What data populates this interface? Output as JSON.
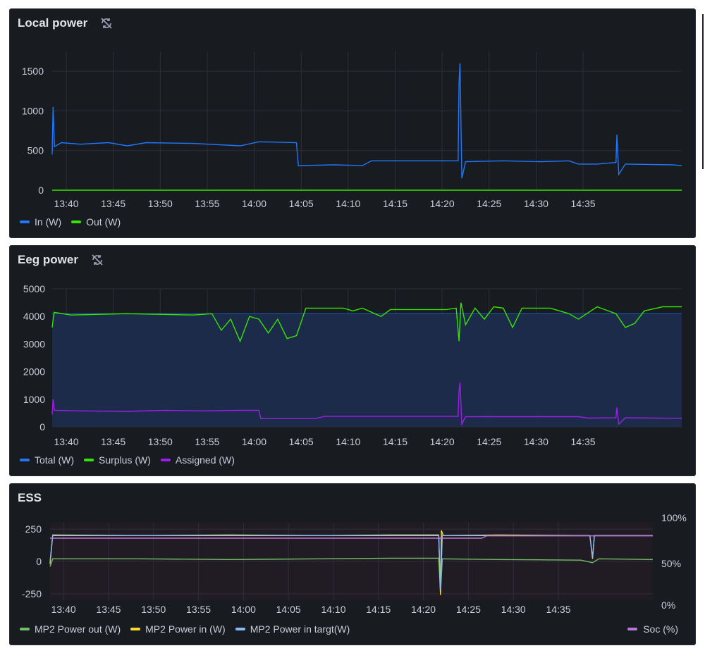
{
  "panels": {
    "local": {
      "title": "Local power",
      "legend": [
        {
          "label": "In (W)",
          "color": "#1f78ff"
        },
        {
          "label": "Out (W)",
          "color": "#37e300"
        }
      ]
    },
    "eeg": {
      "title": "Eeg power",
      "legend": [
        {
          "label": "Total (W)",
          "color": "#1f78ff"
        },
        {
          "label": "Surplus (W)",
          "color": "#37e300"
        },
        {
          "label": "Assigned (W)",
          "color": "#9d1ee8"
        }
      ]
    },
    "ess": {
      "title": "ESS",
      "legend": [
        {
          "label": "MP2 Power out (W)",
          "color": "#73bf69"
        },
        {
          "label": "MP2 Power in (W)",
          "color": "#fade2a"
        },
        {
          "label": "MP2 Power in targt(W)",
          "color": "#8ab8ff"
        }
      ],
      "legend_right": {
        "label": "Soc (%)",
        "color": "#b877d9"
      }
    }
  },
  "chart_data": [
    {
      "type": "line",
      "title": "Local power",
      "x_ticks": [
        "13:40",
        "13:45",
        "13:50",
        "13:55",
        "14:00",
        "14:05",
        "14:10",
        "14:15",
        "14:20",
        "14:25",
        "14:30",
        "14:35"
      ],
      "y_ticks": [
        "0",
        "500",
        "1000",
        "1500"
      ],
      "ylim": [
        0,
        1750
      ],
      "grid": true,
      "legend": "bottom-left",
      "series": [
        {
          "name": "In (W)",
          "color": "#1f78ff",
          "points": [
            [
              0,
              450
            ],
            [
              0.1,
              1050
            ],
            [
              0.25,
              550
            ],
            [
              1,
              600
            ],
            [
              3,
              580
            ],
            [
              6,
              600
            ],
            [
              8,
              560
            ],
            [
              10,
              600
            ],
            [
              15,
              590
            ],
            [
              20,
              560
            ],
            [
              22,
              610
            ],
            [
              26,
              600
            ],
            [
              26.2,
              310
            ],
            [
              30,
              320
            ],
            [
              33,
              310
            ],
            [
              34,
              370
            ],
            [
              38,
              370
            ],
            [
              42,
              370
            ],
            [
              43.2,
              370
            ],
            [
              43.3,
              1350
            ],
            [
              43.4,
              1600
            ],
            [
              43.6,
              150
            ],
            [
              44,
              360
            ],
            [
              48,
              370
            ],
            [
              52,
              360
            ],
            [
              55,
              370
            ],
            [
              56,
              330
            ],
            [
              58,
              330
            ],
            [
              60,
              350
            ],
            [
              60.1,
              700
            ],
            [
              60.3,
              200
            ],
            [
              61,
              330
            ],
            [
              66,
              320
            ],
            [
              67,
              310
            ]
          ]
        },
        {
          "name": "Out (W)",
          "color": "#37e300",
          "points": [
            [
              0,
              0
            ],
            [
              67,
              0
            ]
          ]
        }
      ]
    },
    {
      "type": "area",
      "title": "Eeg power",
      "x_ticks": [
        "13:40",
        "13:45",
        "13:50",
        "13:55",
        "14:00",
        "14:05",
        "14:10",
        "14:15",
        "14:20",
        "14:25",
        "14:30",
        "14:35"
      ],
      "y_ticks": [
        "0",
        "1000",
        "2000",
        "3000",
        "4000",
        "5000"
      ],
      "ylim": [
        0,
        5000
      ],
      "grid": true,
      "legend": "bottom-left",
      "series": [
        {
          "name": "Total (W)",
          "color": "#1f78ff",
          "points": [
            [
              0,
              4100
            ],
            [
              67,
              4100
            ]
          ]
        },
        {
          "name": "Surplus (W)",
          "color": "#37e300",
          "points": [
            [
              0,
              3600
            ],
            [
              0.2,
              4150
            ],
            [
              2,
              4050
            ],
            [
              8,
              4100
            ],
            [
              15,
              4050
            ],
            [
              17,
              4100
            ],
            [
              18,
              3500
            ],
            [
              19,
              3900
            ],
            [
              20,
              3100
            ],
            [
              21,
              4000
            ],
            [
              22,
              3900
            ],
            [
              23,
              3400
            ],
            [
              24,
              3900
            ],
            [
              25,
              3200
            ],
            [
              26,
              3300
            ],
            [
              27,
              4300
            ],
            [
              31,
              4300
            ],
            [
              32,
              4200
            ],
            [
              33,
              4300
            ],
            [
              35,
              4000
            ],
            [
              36,
              4250
            ],
            [
              42,
              4250
            ],
            [
              43,
              4300
            ],
            [
              43.3,
              3100
            ],
            [
              43.5,
              4500
            ],
            [
              44,
              3700
            ],
            [
              45,
              4300
            ],
            [
              46,
              3900
            ],
            [
              47,
              4350
            ],
            [
              48,
              4300
            ],
            [
              49,
              3600
            ],
            [
              50,
              4300
            ],
            [
              53,
              4300
            ],
            [
              55,
              4100
            ],
            [
              56,
              3900
            ],
            [
              58,
              4350
            ],
            [
              60,
              4100
            ],
            [
              61,
              3600
            ],
            [
              62,
              3750
            ],
            [
              63,
              4200
            ],
            [
              65,
              4350
            ],
            [
              67,
              4350
            ]
          ]
        },
        {
          "name": "Assigned (W)",
          "color": "#9d1ee8",
          "points": [
            [
              0,
              450
            ],
            [
              0.1,
              1000
            ],
            [
              0.25,
              600
            ],
            [
              3,
              580
            ],
            [
              8,
              560
            ],
            [
              12,
              600
            ],
            [
              16,
              580
            ],
            [
              20,
              600
            ],
            [
              22,
              600
            ],
            [
              22.2,
              300
            ],
            [
              28,
              300
            ],
            [
              29,
              380
            ],
            [
              40,
              380
            ],
            [
              43.2,
              380
            ],
            [
              43.3,
              1300
            ],
            [
              43.4,
              1600
            ],
            [
              43.6,
              100
            ],
            [
              44,
              370
            ],
            [
              52,
              370
            ],
            [
              56,
              370
            ],
            [
              57,
              320
            ],
            [
              60,
              330
            ],
            [
              60.1,
              700
            ],
            [
              60.3,
              100
            ],
            [
              61,
              330
            ],
            [
              67,
              310
            ]
          ]
        }
      ]
    },
    {
      "type": "line",
      "title": "ESS",
      "x_ticks": [
        "13:40",
        "13:45",
        "13:50",
        "13:55",
        "14:00",
        "14:05",
        "14:10",
        "14:15",
        "14:20",
        "14:25",
        "14:30",
        "14:35"
      ],
      "y_ticks": [
        "-250",
        "0",
        "250"
      ],
      "y2_ticks": [
        "0%",
        "50%",
        "100%"
      ],
      "ylim": [
        -300,
        300
      ],
      "grid": true,
      "legend": "bottom",
      "series": [
        {
          "name": "MP2 Power out (W)",
          "color": "#73bf69",
          "points": [
            [
              0,
              -40
            ],
            [
              0.3,
              20
            ],
            [
              10,
              20
            ],
            [
              20,
              15
            ],
            [
              30,
              20
            ],
            [
              38,
              25
            ],
            [
              43.2,
              25
            ],
            [
              43.4,
              -250
            ],
            [
              43.6,
              20
            ],
            [
              50,
              15
            ],
            [
              59,
              10
            ],
            [
              60.3,
              -10
            ],
            [
              61,
              20
            ],
            [
              67,
              15
            ]
          ]
        },
        {
          "name": "MP2 Power in (W)",
          "color": "#fade2a",
          "points": [
            [
              0,
              -20
            ],
            [
              0.3,
              205
            ],
            [
              10,
              200
            ],
            [
              20,
              205
            ],
            [
              30,
              200
            ],
            [
              38,
              205
            ],
            [
              43.2,
              205
            ],
            [
              43.4,
              -260
            ],
            [
              43.5,
              240
            ],
            [
              43.7,
              200
            ],
            [
              50,
              205
            ],
            [
              60,
              200
            ],
            [
              60.3,
              20
            ],
            [
              60.5,
              200
            ],
            [
              67,
              200
            ]
          ]
        },
        {
          "name": "MP2 Power in targt(W)",
          "color": "#8ab8ff",
          "points": [
            [
              0,
              0
            ],
            [
              0.3,
              200
            ],
            [
              43.2,
              200
            ],
            [
              43.4,
              -220
            ],
            [
              43.6,
              200
            ],
            [
              60,
              200
            ],
            [
              60.3,
              30
            ],
            [
              60.5,
              200
            ],
            [
              67,
              200
            ]
          ]
        },
        {
          "name": "Soc (%)",
          "color": "#b877d9",
          "axis": "right",
          "points_pct": [
            [
              0,
              80
            ],
            [
              48,
              80
            ],
            [
              48.5,
              83
            ],
            [
              67,
              83
            ]
          ]
        }
      ]
    }
  ]
}
